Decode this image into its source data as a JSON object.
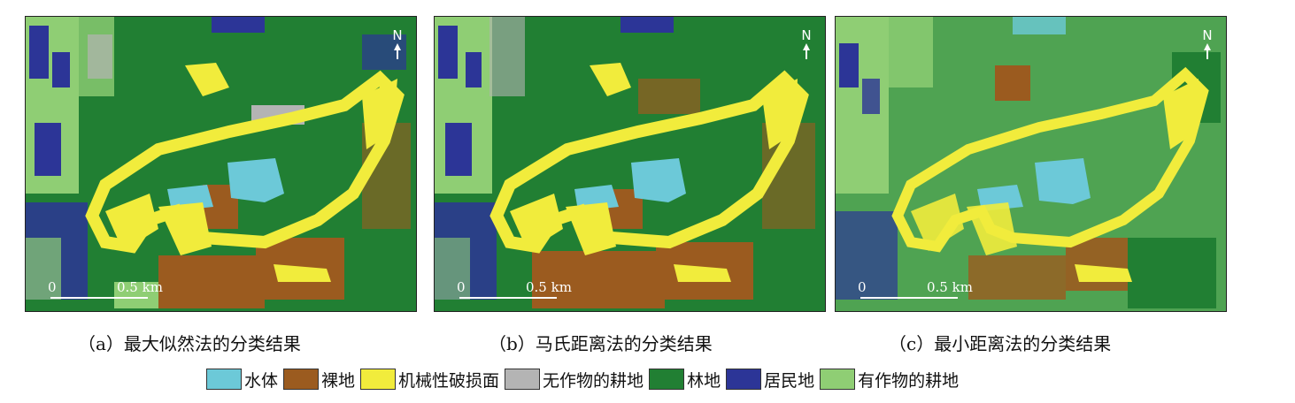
{
  "panels": [
    {
      "id": "a",
      "caption": "（a）最大似然法的分类结果",
      "north": "N",
      "scale_zero": "0",
      "scale_dist": "0.5 km"
    },
    {
      "id": "b",
      "caption": "（b）马氏距离法的分类结果",
      "north": "N",
      "scale_zero": "0",
      "scale_dist": "0.5 km"
    },
    {
      "id": "c",
      "caption": "（c）最小距离法的分类结果",
      "north": "N",
      "scale_zero": "0",
      "scale_dist": "0.5 km"
    }
  ],
  "legend": [
    {
      "label": "水体",
      "color": "#6cc9d8"
    },
    {
      "label": "裸地",
      "color": "#9b5b1f"
    },
    {
      "label": "机械性破损面",
      "color": "#f1ec3c"
    },
    {
      "label": "无作物的耕地",
      "color": "#b4b4b4"
    },
    {
      "label": "林地",
      "color": "#217f33"
    },
    {
      "label": "居民地",
      "color": "#2c3597"
    },
    {
      "label": "有作物的耕地",
      "color": "#8fce74"
    }
  ]
}
